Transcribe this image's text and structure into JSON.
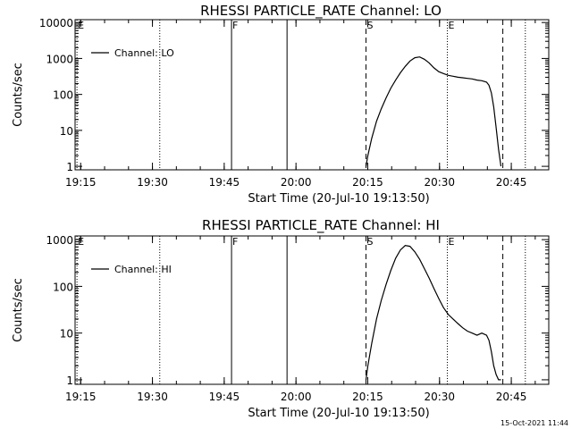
{
  "footer_timestamp": "15-Oct-2021 11:44",
  "chart_data": [
    {
      "type": "line",
      "title": "RHESSI  PARTICLE_RATE  Channel:  LO",
      "xlabel": "Start Time (20-Jul-10 19:13:50)",
      "ylabel": "Counts/sec",
      "yscale": "log",
      "ylim": [
        0.8,
        12000
      ],
      "xlim_minutes": [
        0,
        99.0
      ],
      "x_tick_minutes": [
        1.17,
        16.17,
        31.17,
        46.17,
        61.17,
        76.17,
        91.17
      ],
      "x_tick_labels": [
        "19:15",
        "19:30",
        "19:45",
        "20:00",
        "20:15",
        "20:30",
        "20:45"
      ],
      "y_ticks": [
        1,
        10,
        100,
        1000,
        10000
      ],
      "y_tick_labels": [
        "1",
        "10",
        "100",
        "1000",
        "10000"
      ],
      "legend": {
        "label": "Channel: LO",
        "position": "top-left"
      },
      "markers": [
        {
          "minute": 0.4,
          "label": "E",
          "style": "dotted"
        },
        {
          "minute": 17.7,
          "label": "",
          "style": "dotted"
        },
        {
          "minute": 32.7,
          "label": "F",
          "style": "solid"
        },
        {
          "minute": 44.3,
          "label": "",
          "style": "solid"
        },
        {
          "minute": 60.8,
          "label": "S",
          "style": "dashed"
        },
        {
          "minute": 77.8,
          "label": "E",
          "style": "dotted"
        },
        {
          "minute": 89.4,
          "label": "",
          "style": "dashed"
        },
        {
          "minute": 94.1,
          "label": "",
          "style": "dotted"
        }
      ],
      "series": [
        {
          "name": "Channel: LO",
          "x_minutes": [
            60.8,
            61.2,
            62,
            63,
            64,
            65,
            66,
            67,
            68,
            69,
            70,
            71,
            72,
            73,
            74,
            75,
            76,
            77,
            78,
            79,
            80,
            81,
            82,
            83,
            84,
            85,
            86,
            86.5,
            87,
            87.5,
            88,
            88.5,
            89
          ],
          "values": [
            1,
            2,
            6,
            18,
            40,
            80,
            150,
            250,
            400,
            600,
            850,
            1050,
            1100,
            950,
            750,
            550,
            430,
            380,
            340,
            320,
            300,
            290,
            280,
            270,
            250,
            240,
            220,
            180,
            110,
            45,
            12,
            3,
            1
          ]
        }
      ]
    },
    {
      "type": "line",
      "title": "RHESSI  PARTICLE_RATE  Channel:  HI",
      "xlabel": "Start Time (20-Jul-10 19:13:50)",
      "ylabel": "Counts/sec",
      "yscale": "log",
      "ylim": [
        0.8,
        1200
      ],
      "xlim_minutes": [
        0,
        99.0
      ],
      "x_tick_minutes": [
        1.17,
        16.17,
        31.17,
        46.17,
        61.17,
        76.17,
        91.17
      ],
      "x_tick_labels": [
        "19:15",
        "19:30",
        "19:45",
        "20:00",
        "20:15",
        "20:30",
        "20:45"
      ],
      "y_ticks": [
        1,
        10,
        100,
        1000
      ],
      "y_tick_labels": [
        "1",
        "10",
        "100",
        "1000"
      ],
      "legend": {
        "label": "Channel: HI",
        "position": "top-left"
      },
      "markers": [
        {
          "minute": 0.4,
          "label": "E",
          "style": "dotted"
        },
        {
          "minute": 17.7,
          "label": "",
          "style": "dotted"
        },
        {
          "minute": 32.7,
          "label": "F",
          "style": "solid"
        },
        {
          "minute": 44.3,
          "label": "",
          "style": "solid"
        },
        {
          "minute": 60.8,
          "label": "S",
          "style": "dashed"
        },
        {
          "minute": 77.8,
          "label": "E",
          "style": "dotted"
        },
        {
          "minute": 89.4,
          "label": "",
          "style": "dashed"
        },
        {
          "minute": 94.1,
          "label": "",
          "style": "dotted"
        }
      ],
      "series": [
        {
          "name": "Channel: HI",
          "x_minutes": [
            60.8,
            61.2,
            62,
            63,
            64,
            65,
            66,
            67,
            68,
            69,
            70,
            71,
            72,
            73,
            74,
            75,
            76,
            77,
            78,
            79,
            80,
            81,
            82,
            83,
            84,
            85,
            86,
            86.5,
            87,
            87.5,
            88,
            88.5,
            89
          ],
          "values": [
            1,
            2,
            6,
            20,
            50,
            110,
            220,
            400,
            600,
            750,
            720,
            550,
            380,
            240,
            150,
            90,
            55,
            35,
            25,
            20,
            16,
            13,
            11,
            10,
            9,
            10,
            9,
            7,
            4,
            2,
            1.3,
            1,
            1
          ]
        }
      ]
    }
  ]
}
